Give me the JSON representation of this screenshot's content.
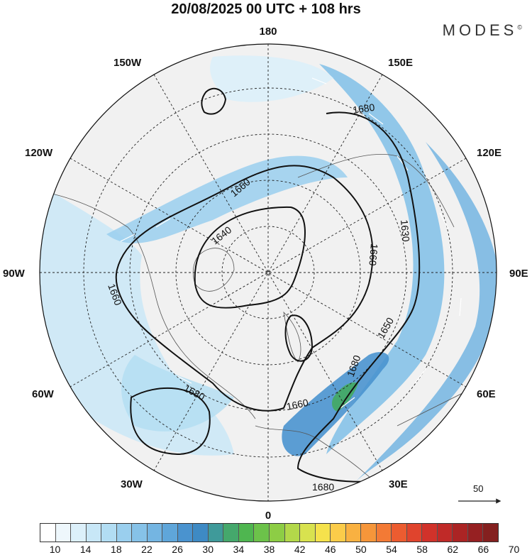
{
  "title": "20/08/2025  00 UTC  + 108 hrs",
  "brand": "MODES",
  "brand_mark": "©",
  "lon_labels": {
    "top": "180",
    "bottom": "0",
    "left": "90W",
    "right": "90E",
    "upper_left_1": "150W",
    "upper_left_2": "120W",
    "lower_left_1": "60W",
    "lower_left_2": "30W",
    "upper_right_1": "150E",
    "upper_right_2": "120E",
    "lower_right_1": "60E",
    "lower_right_2": "30E"
  },
  "contours": [
    {
      "value": "1640"
    },
    {
      "value": "1660"
    },
    {
      "value": "1660"
    },
    {
      "value": "1660"
    },
    {
      "value": "1660"
    },
    {
      "value": "1680"
    },
    {
      "value": "1680"
    },
    {
      "value": "1680"
    },
    {
      "value": "1680"
    },
    {
      "value": "1630"
    },
    {
      "value": "1650"
    }
  ],
  "vector_reference": "50",
  "colorbar": {
    "colors": [
      "#ffffff",
      "#eef7fc",
      "#dcf0fa",
      "#c8e7f7",
      "#b2ddf3",
      "#9acfee",
      "#86c2e8",
      "#74b5e2",
      "#5fa6da",
      "#4a93cf",
      "#3e8ac4",
      "#3f9a9a",
      "#45a86c",
      "#4fb650",
      "#6cc24a",
      "#8dcd45",
      "#b3d84a",
      "#d8e24f",
      "#f5e24c",
      "#fbcc4a",
      "#f9b141",
      "#f6963a",
      "#f37a35",
      "#ec5c30",
      "#e0442d",
      "#d1322a",
      "#c02a28",
      "#ab2424",
      "#962022",
      "#84201f"
    ],
    "tick_labels": [
      "10",
      "14",
      "18",
      "22",
      "26",
      "30",
      "34",
      "38",
      "42",
      "46",
      "50",
      "54",
      "58",
      "62",
      "66",
      "70"
    ]
  }
}
